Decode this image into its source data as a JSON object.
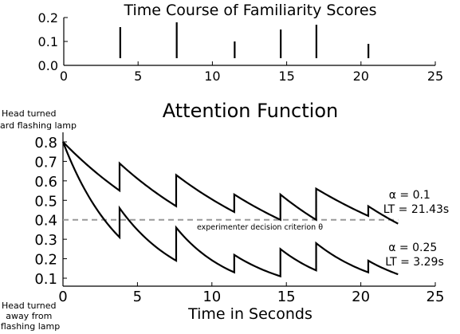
{
  "chart_data": [
    {
      "type": "bar",
      "title": "Time Course of Familiarity Scores",
      "xlabel": "",
      "ylabel": "",
      "xlim": [
        0,
        25
      ],
      "ylim": [
        0.0,
        0.2
      ],
      "x_ticks": [
        "0",
        "5",
        "10",
        "15",
        "20",
        "25"
      ],
      "y_ticks": [
        "0.0",
        "0.1",
        "0.2"
      ],
      "x": [
        3.8,
        7.6,
        11.5,
        14.6,
        17.0,
        20.5
      ],
      "values": [
        0.15,
        0.17,
        0.09,
        0.14,
        0.16,
        0.08
      ],
      "grid": false
    },
    {
      "type": "line",
      "title": "Attention Function",
      "xlabel": "Time in Seconds",
      "ylabel": "",
      "xlim": [
        0,
        25
      ],
      "ylim": [
        0.08,
        0.82
      ],
      "x_ticks": [
        "0",
        "5",
        "10",
        "15",
        "20",
        "25"
      ],
      "y_ticks": [
        "0.1",
        "0.2",
        "0.3",
        "0.4",
        "0.5",
        "0.6",
        "0.7",
        "0.8"
      ],
      "grid": false,
      "top_annotation": "Head turned toward flashing lamp",
      "bottom_annotation": "Head turned away from flashing lamp",
      "criterion": {
        "y": 0.4,
        "label": "experimenter decision criterion θ",
        "color": "#999999"
      },
      "series": [
        {
          "label_lines": [
            "α = 0.1",
            "LT = 21.43s"
          ],
          "color": "#000000",
          "points": [
            [
              0.0,
              0.8
            ],
            [
              3.8,
              0.55
            ],
            [
              3.8,
              0.69
            ],
            [
              7.6,
              0.47
            ],
            [
              7.6,
              0.63
            ],
            [
              11.5,
              0.44
            ],
            [
              11.5,
              0.53
            ],
            [
              14.6,
              0.4
            ],
            [
              14.6,
              0.53
            ],
            [
              17.0,
              0.4
            ],
            [
              17.0,
              0.56
            ],
            [
              20.5,
              0.42
            ],
            [
              20.5,
              0.47
            ],
            [
              22.5,
              0.38
            ]
          ]
        },
        {
          "label_lines": [
            "α = 0.25",
            "LT = 3.29s"
          ],
          "color": "#000000",
          "points": [
            [
              0.0,
              0.8
            ],
            [
              3.8,
              0.31
            ],
            [
              3.8,
              0.46
            ],
            [
              7.6,
              0.19
            ],
            [
              7.6,
              0.36
            ],
            [
              11.5,
              0.13
            ],
            [
              11.5,
              0.22
            ],
            [
              14.6,
              0.11
            ],
            [
              14.6,
              0.25
            ],
            [
              17.0,
              0.14
            ],
            [
              17.0,
              0.28
            ],
            [
              20.5,
              0.13
            ],
            [
              20.5,
              0.19
            ],
            [
              22.5,
              0.12
            ]
          ]
        }
      ]
    }
  ]
}
